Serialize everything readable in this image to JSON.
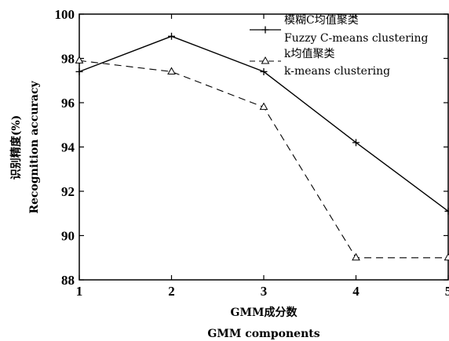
{
  "chart_data": {
    "type": "line",
    "x": [
      1,
      2,
      3,
      4,
      5
    ],
    "xlim": [
      1,
      5
    ],
    "ylim": [
      88,
      100
    ],
    "xticks": [
      "1",
      "2",
      "3",
      "4",
      "5"
    ],
    "yticks": [
      "88",
      "90",
      "92",
      "94",
      "96",
      "98",
      "100"
    ],
    "xlabel_cn": "GMM成分数",
    "xlabel_en": "GMM components",
    "ylabel_cn": "识别精度(%)",
    "ylabel_en": "Recognition accuracy",
    "legend_position": "top-right",
    "grid": false,
    "series": [
      {
        "name_cn": "模糊C均值聚类",
        "name_en": "Fuzzy C-means clustering",
        "marker": "plus",
        "line_style": "solid",
        "values": [
          97.4,
          99.0,
          97.4,
          94.2,
          91.1
        ]
      },
      {
        "name_cn": "k均值聚类",
        "name_en": "k-means clustering",
        "marker": "triangle",
        "line_style": "dashed",
        "values": [
          97.9,
          97.4,
          95.8,
          89.0,
          89.0
        ]
      }
    ]
  }
}
